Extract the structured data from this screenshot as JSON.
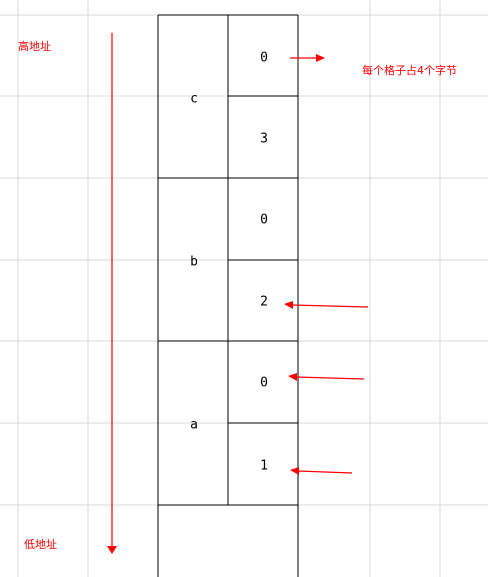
{
  "annotations": {
    "high_address": "高地址",
    "low_address": "低地址",
    "cell_size_note": "每个格子占4个字节"
  },
  "variables": [
    {
      "name": "c",
      "cells": [
        "0",
        "3"
      ]
    },
    {
      "name": "b",
      "cells": [
        "0",
        "2"
      ]
    },
    {
      "name": "a",
      "cells": [
        "0",
        "1"
      ]
    }
  ],
  "colors": {
    "accent": "#ff0000",
    "grid": "#d9d9d9",
    "line": "#000000"
  }
}
